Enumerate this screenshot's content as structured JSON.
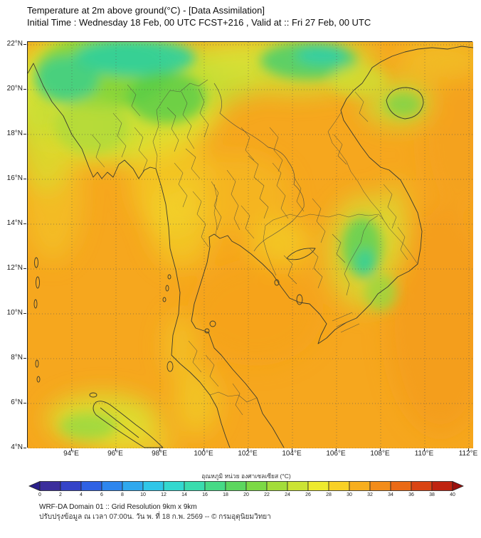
{
  "header": {
    "title_line1": "Temperature at 2m above ground(°C) - [Data Assimilation]",
    "title_line2": "Initial Time : Wednesday 18 Feb, 00 UTC FCST+216 , Valid at :: Fri 27 Feb, 00 UTC"
  },
  "map": {
    "base_color": "#f6a71e",
    "lat_labels": [
      "22°N",
      "20°N",
      "18°N",
      "16°N",
      "14°N",
      "12°N",
      "10°N",
      "8°N",
      "6°N",
      "4°N"
    ],
    "lon_labels": [
      "94°E",
      "96°E",
      "98°E",
      "100°E",
      "102°E",
      "104°E",
      "106°E",
      "108°E",
      "110°E",
      "112°E"
    ]
  },
  "colorbar": {
    "label": "อุณหภูมิ หน่วย องศาเซลเซียส (°C)",
    "ticks": [
      "0",
      "2",
      "4",
      "6",
      "8",
      "10",
      "12",
      "14",
      "16",
      "18",
      "20",
      "22",
      "24",
      "26",
      "28",
      "30",
      "32",
      "34",
      "36",
      "38",
      "40"
    ],
    "segment_colors": [
      "#3b2d9c",
      "#3544c8",
      "#2f62e4",
      "#2e86ee",
      "#2fa8ee",
      "#2fc6e8",
      "#33d8cf",
      "#3adcae",
      "#47da86",
      "#5cd65f",
      "#7cd945",
      "#a3dd3a",
      "#cbe334",
      "#eeea2e",
      "#f8d026",
      "#f7ae1f",
      "#f28c1a",
      "#ea6a16",
      "#d94413",
      "#bf2410"
    ],
    "arrow_left_color": "#2a1f8a",
    "arrow_right_color": "#9c100c"
  },
  "footer": {
    "line1": "WRF-DA Domain 01 :: Grid Resolution 9km x 9km",
    "line2": "ปรับปรุงข้อมูล ณ เวลา 07:00น. วัน พ. ที่ 18 ก.พ. 2569 -- © กรมอุตุนิยมวิทยา"
  }
}
